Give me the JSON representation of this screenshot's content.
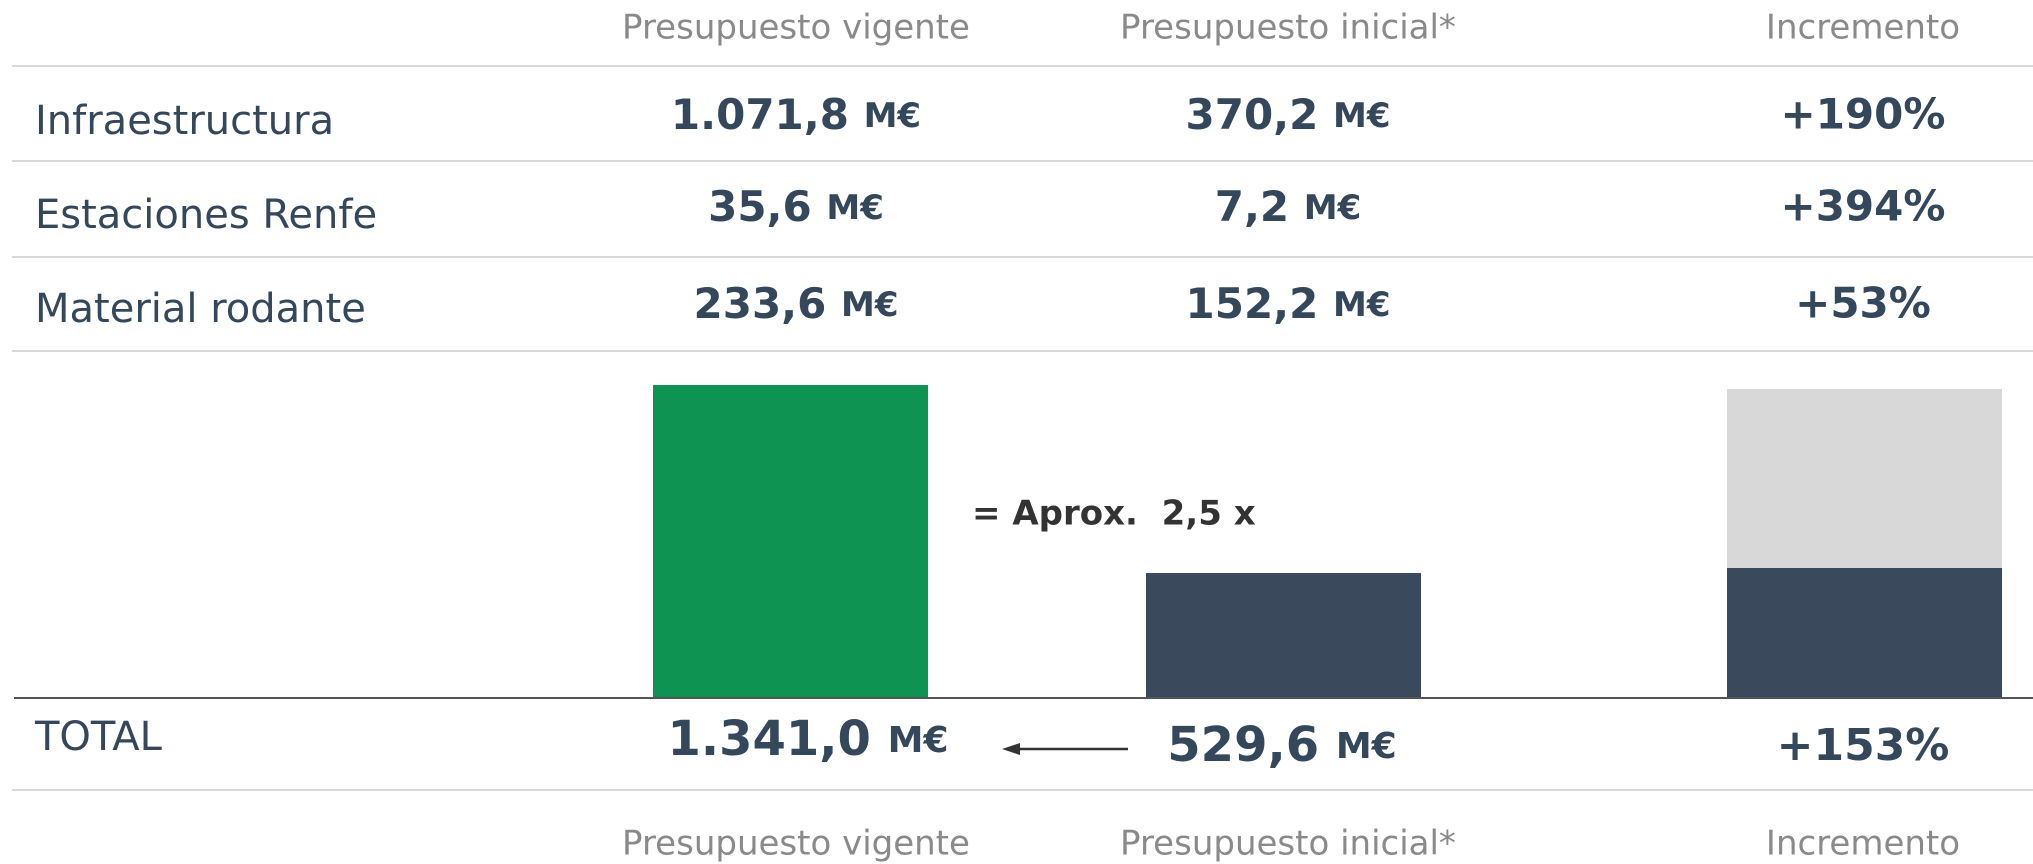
{
  "header": {
    "columns": [
      "Presupuesto vigente",
      "Presupuesto inicial*",
      "Incremento"
    ]
  },
  "unit": "M€",
  "rows": [
    {
      "label": "Infraestructura",
      "vigente": "1.071,8",
      "inicial": "370,2",
      "incremento": "+190%"
    },
    {
      "label": "Estaciones Renfe",
      "vigente": "35,6",
      "inicial": "7,2",
      "incremento": "+394%"
    },
    {
      "label": "Material rodante",
      "vigente": "233,6",
      "inicial": "152,2",
      "incremento": "+53%"
    }
  ],
  "annotation": "= Aprox.  2,5 x",
  "total": {
    "label": "TOTAL",
    "vigente": "1.341,0",
    "inicial": "529,6",
    "incremento": "+153%"
  }
}
